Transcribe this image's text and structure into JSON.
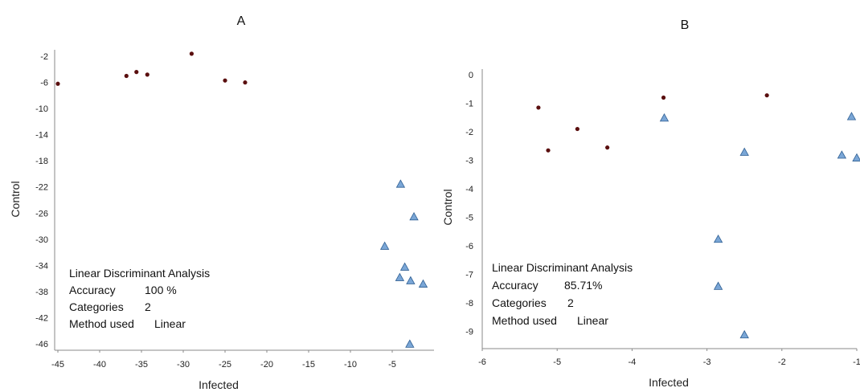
{
  "chart_data": [
    {
      "type": "scatter",
      "title": "A",
      "xlabel": "Infected",
      "ylabel": "Control",
      "xlim": [
        -45,
        0
      ],
      "ylim": [
        -47,
        -1
      ],
      "x_ticks": [
        -45,
        -40,
        -35,
        -30,
        -25,
        -20,
        -15,
        -10,
        -5
      ],
      "y_ticks": [
        -2,
        -6,
        -10,
        -14,
        -18,
        -22,
        -26,
        -30,
        -34,
        -38,
        -42,
        -46
      ],
      "grid": false,
      "series": [
        {
          "marker": "dot",
          "color": "#5a0f0f",
          "points": [
            [
              -45,
              -6.2
            ],
            [
              -36.8,
              -5.0
            ],
            [
              -35.6,
              -4.4
            ],
            [
              -34.3,
              -4.8
            ],
            [
              -29,
              -1.6
            ],
            [
              -25,
              -5.7
            ],
            [
              -22.6,
              -6.0
            ]
          ]
        },
        {
          "marker": "triangle",
          "color": "#7aa6d6",
          "points": [
            [
              -4.0,
              -21.5
            ],
            [
              -2.4,
              -26.5
            ],
            [
              -5.9,
              -31.0
            ],
            [
              -3.5,
              -34.2
            ],
            [
              -4.1,
              -35.8
            ],
            [
              -2.8,
              -36.3
            ],
            [
              -1.3,
              -36.8
            ],
            [
              -2.9,
              -46.0
            ]
          ]
        }
      ],
      "annotation": {
        "line1": "Linear Discriminant Analysis",
        "acc_label": "Accuracy",
        "acc_value": "100 %",
        "cat_label": "Categories",
        "cat_value": "2",
        "method_label": "Method used",
        "method_value": "Linear"
      }
    },
    {
      "type": "scatter",
      "title": "B",
      "xlabel": "Infected",
      "ylabel": "Control",
      "xlim": [
        -6,
        -1
      ],
      "ylim": [
        -9.6,
        0.2
      ],
      "x_ticks": [
        -6,
        -5,
        -4,
        -3,
        -2,
        -1
      ],
      "y_ticks": [
        0,
        -1,
        -2,
        -3,
        -4,
        -5,
        -6,
        -7,
        -8,
        -9
      ],
      "grid": false,
      "series": [
        {
          "marker": "dot",
          "color": "#5a0f0f",
          "points": [
            [
              -5.25,
              -1.15
            ],
            [
              -5.12,
              -2.65
            ],
            [
              -4.73,
              -1.9
            ],
            [
              -4.33,
              -2.55
            ],
            [
              -3.58,
              -0.8
            ],
            [
              -2.2,
              -0.72
            ]
          ]
        },
        {
          "marker": "triangle",
          "color": "#7aa6d6",
          "points": [
            [
              -3.57,
              -1.5
            ],
            [
              -2.5,
              -2.7
            ],
            [
              -1.07,
              -1.45
            ],
            [
              -1.2,
              -2.8
            ],
            [
              -1.0,
              -2.9
            ],
            [
              -2.85,
              -5.75
            ],
            [
              -2.85,
              -7.4
            ],
            [
              -2.5,
              -9.1
            ]
          ]
        }
      ],
      "annotation": {
        "line1": "Linear Discriminant Analysis",
        "acc_label": "Accuracy",
        "acc_value": "85.71%",
        "cat_label": "Categories",
        "cat_value": "2",
        "method_label": "Method used",
        "method_value": "Linear"
      }
    }
  ]
}
